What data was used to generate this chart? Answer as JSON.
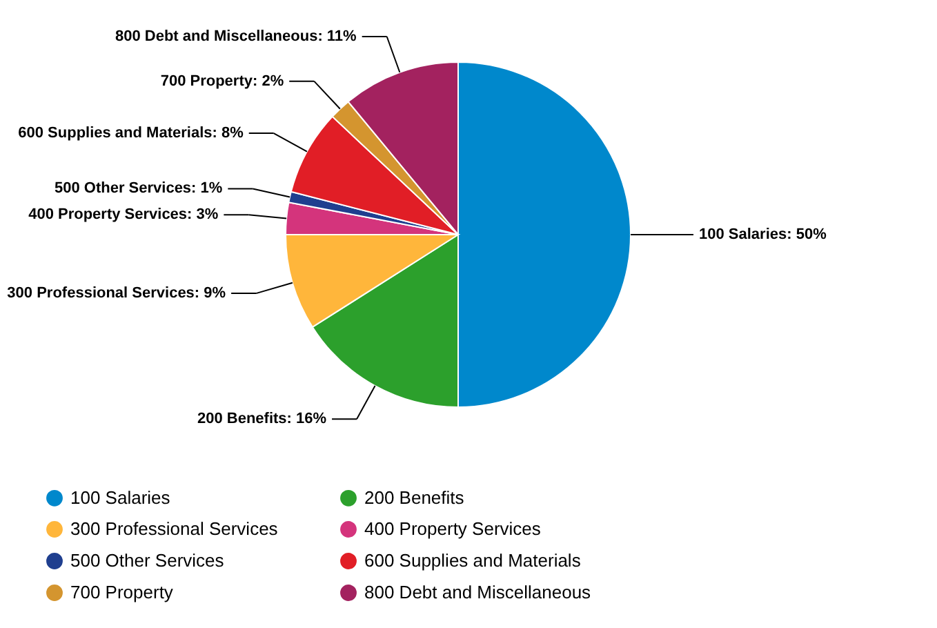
{
  "chart_data": {
    "type": "pie",
    "categories": [
      "100 Salaries",
      "200 Benefits",
      "300 Professional Services",
      "400 Property Services",
      "500 Other Services",
      "600 Supplies and Materials",
      "700 Property",
      "800 Debt and Miscellaneous"
    ],
    "values": [
      50,
      16,
      9,
      3,
      1,
      8,
      2,
      11
    ],
    "value_labels": [
      ": 50%",
      ": 16%",
      ": 9%",
      ": 3%",
      ": 1%",
      ": 8%",
      ": 2%",
      ": 11%"
    ],
    "colors": [
      "#0088cc",
      "#2ca02c",
      "#ffb63b",
      "#d4347c",
      "#1f3f8f",
      "#e11e26",
      "#d4952f",
      "#a3225f"
    ],
    "legend": "bottom"
  }
}
